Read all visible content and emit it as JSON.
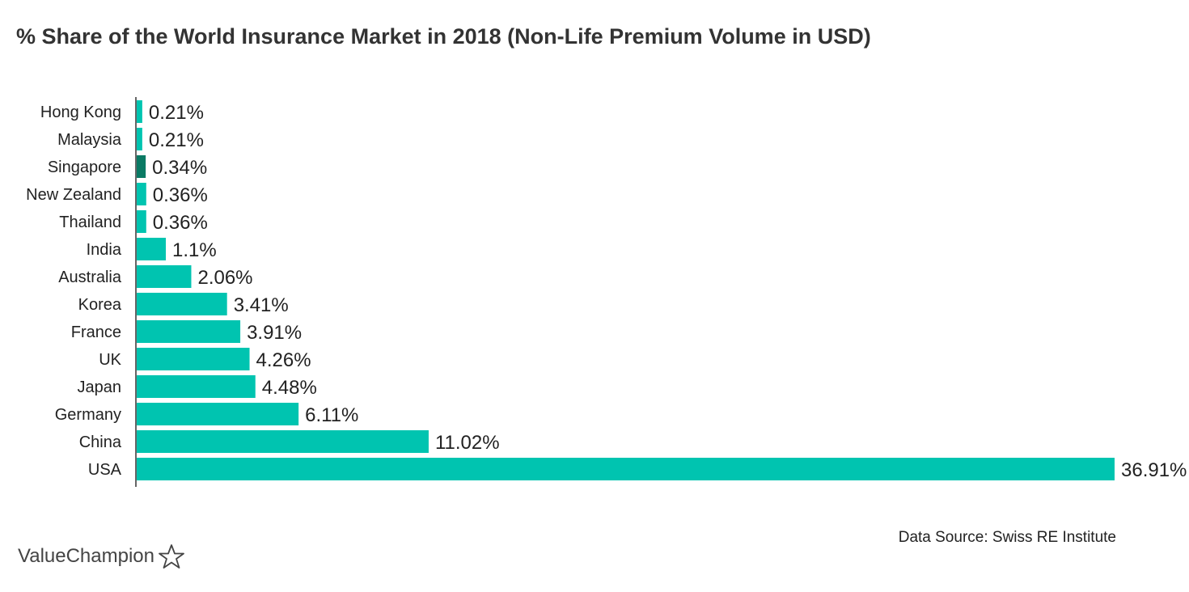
{
  "title": "% Share of the World Insurance Market in 2018 (Non-Life Premium Volume in USD)",
  "source": "Data Source: Swiss RE Institute",
  "brand": {
    "name": "ValueChampion",
    "icon": "star-outline-icon"
  },
  "colors": {
    "bar": "#00c4b0",
    "highlight": "#0a7a64",
    "axis": "#333333"
  },
  "chart_data": {
    "type": "bar",
    "orientation": "horizontal",
    "categories": [
      "Hong Kong",
      "Malaysia",
      "Singapore",
      "New Zealand",
      "Thailand",
      "India",
      "Australia",
      "Korea",
      "France",
      "UK",
      "Japan",
      "Germany",
      "China",
      "USA"
    ],
    "values": [
      0.21,
      0.21,
      0.34,
      0.36,
      0.36,
      1.1,
      2.06,
      3.41,
      3.91,
      4.26,
      4.48,
      6.11,
      11.02,
      36.91
    ],
    "labels": [
      "0.21%",
      "0.21%",
      "0.34%",
      "0.36%",
      "0.36%",
      "1.1%",
      "2.06%",
      "3.41%",
      "3.91%",
      "4.26%",
      "4.48%",
      "6.11%",
      "11.02%",
      "36.91%"
    ],
    "highlight_category": "Singapore",
    "xlim": [
      0,
      36.91
    ],
    "grid": false,
    "legend": "none",
    "title": "% Share of the World Insurance Market in 2018 (Non-Life Premium Volume in USD)",
    "xlabel": "",
    "ylabel": ""
  }
}
